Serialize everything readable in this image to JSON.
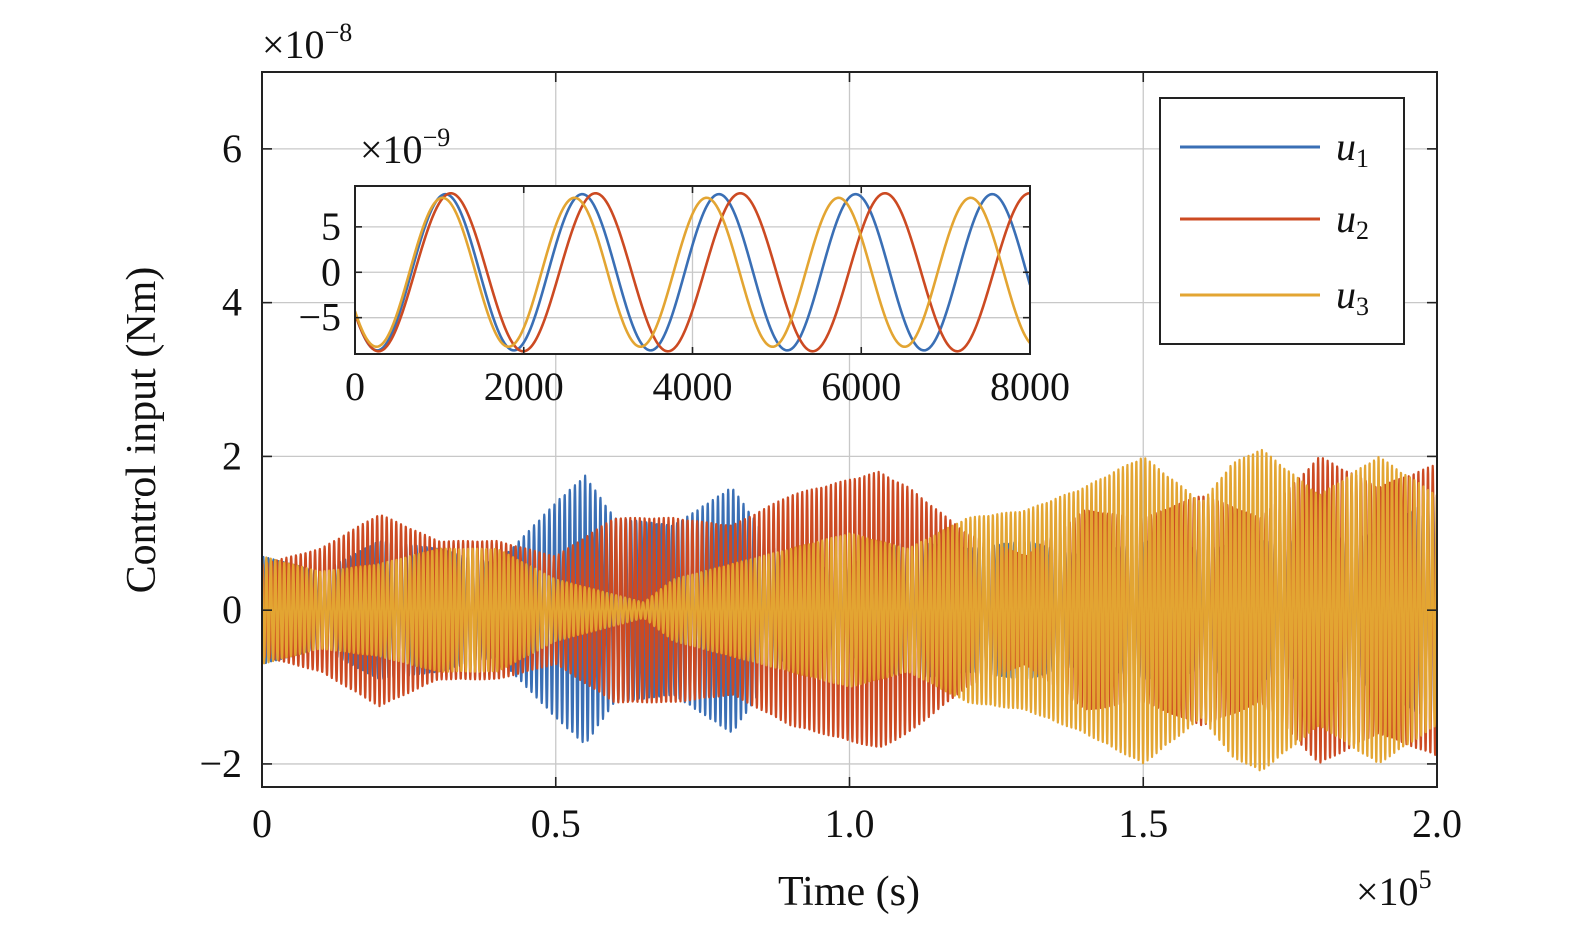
{
  "chart_data": [
    {
      "type": "line",
      "title": "",
      "xlabel": "Time (s)",
      "ylabel": "Control input (Nm)",
      "x_multiplier_label": "×10",
      "x_multiplier_exp": "5",
      "y_multiplier_label": "×10",
      "y_multiplier_exp": "−8",
      "xlim": [
        0,
        2.0
      ],
      "ylim": [
        -2.3,
        7.0
      ],
      "xticks": [
        0,
        0.5,
        1.0,
        1.5,
        2.0
      ],
      "xtick_labels": [
        "0",
        "0.5",
        "1.0",
        "1.5",
        "2.0"
      ],
      "yticks": [
        -2,
        0,
        2,
        4,
        6
      ],
      "ytick_labels": [
        "−2",
        "0",
        "2",
        "4",
        "6"
      ],
      "grid": true,
      "legend_position": "top-right",
      "series": [
        {
          "name": "u",
          "subscript": "1",
          "color": "#3a6fb5",
          "envelope_x": [
            0,
            0.1,
            0.2,
            0.3,
            0.4,
            0.45,
            0.5,
            0.55,
            0.6,
            0.7,
            0.8,
            0.9,
            1.0,
            1.1,
            1.2,
            1.3,
            1.4,
            1.5,
            1.6,
            1.7,
            1.8,
            1.9,
            2.0
          ],
          "envelope_amp": [
            0.7,
            0.5,
            0.9,
            0.8,
            0.6,
            1.0,
            1.4,
            1.75,
            1.2,
            1.1,
            1.6,
            0.5,
            0.6,
            0.9,
            0.8,
            0.9,
            0.7,
            0.9,
            0.8,
            0.9,
            0.9,
            1.0,
            1.5
          ]
        },
        {
          "name": "u",
          "subscript": "2",
          "color": "#cc4a22",
          "envelope_x": [
            0,
            0.1,
            0.2,
            0.3,
            0.4,
            0.5,
            0.6,
            0.7,
            0.8,
            0.9,
            1.0,
            1.05,
            1.1,
            1.2,
            1.3,
            1.4,
            1.5,
            1.6,
            1.7,
            1.8,
            1.9,
            2.0
          ],
          "envelope_amp": [
            0.6,
            0.8,
            1.25,
            0.9,
            0.9,
            0.7,
            1.2,
            1.2,
            1.1,
            1.5,
            1.7,
            1.8,
            1.6,
            1.0,
            0.7,
            1.3,
            1.2,
            1.5,
            1.2,
            2.0,
            1.6,
            1.9
          ]
        },
        {
          "name": "u",
          "subscript": "3",
          "color": "#e3a532",
          "envelope_x": [
            0,
            0.1,
            0.2,
            0.3,
            0.4,
            0.5,
            0.6,
            0.65,
            0.7,
            0.8,
            0.9,
            1.0,
            1.1,
            1.2,
            1.3,
            1.4,
            1.5,
            1.6,
            1.65,
            1.7,
            1.8,
            1.9,
            2.0
          ],
          "envelope_amp": [
            0.7,
            0.5,
            0.6,
            0.8,
            0.8,
            0.4,
            0.2,
            0.1,
            0.4,
            0.6,
            0.8,
            1.0,
            0.8,
            1.2,
            1.3,
            1.6,
            2.0,
            1.4,
            1.9,
            2.1,
            1.5,
            2.0,
            1.5
          ]
        }
      ]
    },
    {
      "type": "line",
      "title": "",
      "xlabel": "",
      "ylabel": "",
      "y_multiplier_label": "×10",
      "y_multiplier_exp": "−9",
      "xlim": [
        0,
        8000
      ],
      "ylim": [
        -9.0,
        9.5
      ],
      "xticks": [
        0,
        2000,
        4000,
        6000,
        8000
      ],
      "xtick_labels": [
        "0",
        "2000",
        "4000",
        "6000",
        "8000"
      ],
      "yticks": [
        -5,
        0,
        5
      ],
      "ytick_labels": [
        "−5",
        "0",
        "5"
      ],
      "grid": true,
      "series": [
        {
          "name": "u1",
          "color": "#3a6fb5",
          "amplitude": 8.6,
          "period": 1620,
          "phase_offset": 0
        },
        {
          "name": "u2",
          "color": "#cc4a22",
          "amplitude": 8.7,
          "period": 1715,
          "phase_offset": 0
        },
        {
          "name": "u3",
          "color": "#e3a532",
          "amplitude": 8.2,
          "period": 1565,
          "phase_offset": 0
        }
      ]
    }
  ]
}
